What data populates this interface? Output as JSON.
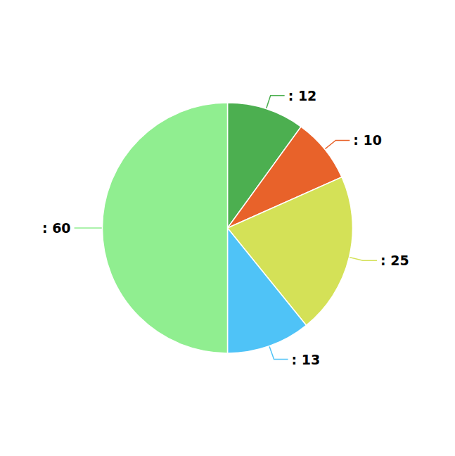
{
  "chart_data": {
    "type": "pie",
    "categories": [
      ": 12",
      ": 10",
      ": 25",
      ": 13",
      ": 60"
    ],
    "values": [
      12,
      10,
      25,
      13,
      60
    ],
    "colors": [
      "#4caf50",
      "#e8622a",
      "#d4e157",
      "#4fc3f7",
      "#90ee90"
    ],
    "legend": false
  }
}
